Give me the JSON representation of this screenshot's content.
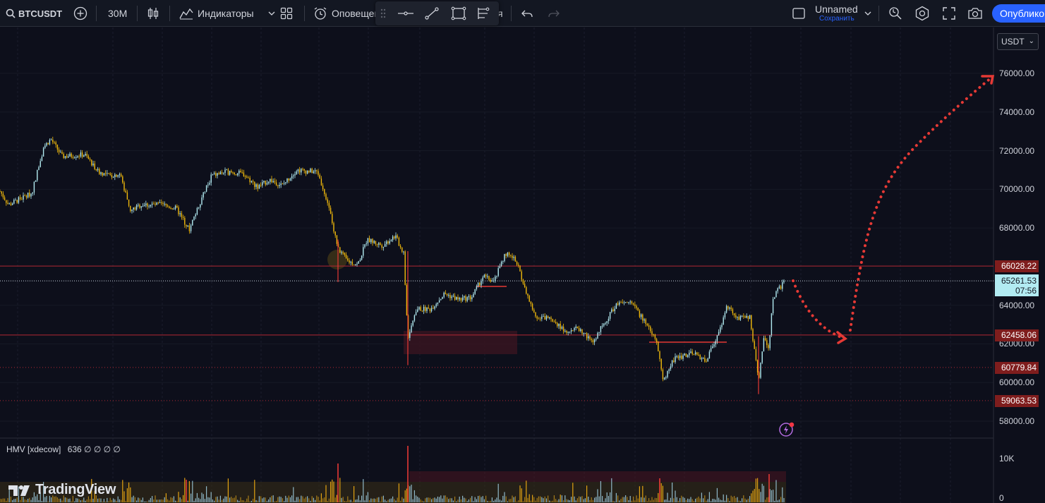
{
  "toolbar": {
    "symbol": "BTCUSDT",
    "interval": "30M",
    "indicators_label": "Индикаторы",
    "alert_label": "Оповещен",
    "alert_trunc": "я",
    "layout_name": "Unnamed",
    "save_label": "Сохранить",
    "publish_label": "Опублико"
  },
  "chart": {
    "currency": "USDT",
    "current_price": "65261.53",
    "countdown": "07:56",
    "axis_labels": [
      "76000.00",
      "74000.00",
      "72000.00",
      "70000.00",
      "68000.00",
      "64000.00",
      "62000.00",
      "60000.00",
      "58000.00"
    ],
    "axis_values": [
      76000,
      74000,
      72000,
      70000,
      68000,
      64000,
      62000,
      60000,
      58000
    ],
    "levels": [
      {
        "label": "66028.22",
        "value": 66028.22,
        "color": "#7f1d1d"
      },
      {
        "label": "62458.06",
        "value": 62458.06,
        "color": "#7f1d1d"
      },
      {
        "label": "60779.84",
        "value": 60779.84,
        "color": "#7f1d1d"
      },
      {
        "label": "59063.53",
        "value": 59063.53,
        "color": "#7f1d1d"
      }
    ],
    "volume_axis": [
      "10K",
      "0"
    ],
    "up_color": "#b2ebf2",
    "down_color": "#f0b90b",
    "projection_color": "#e53935"
  },
  "indicator": {
    "legend": "HMV [xdecow]",
    "values": "636  ∅  ∅  ∅  ∅"
  },
  "brand": {
    "logo_text": "TradingView"
  }
}
